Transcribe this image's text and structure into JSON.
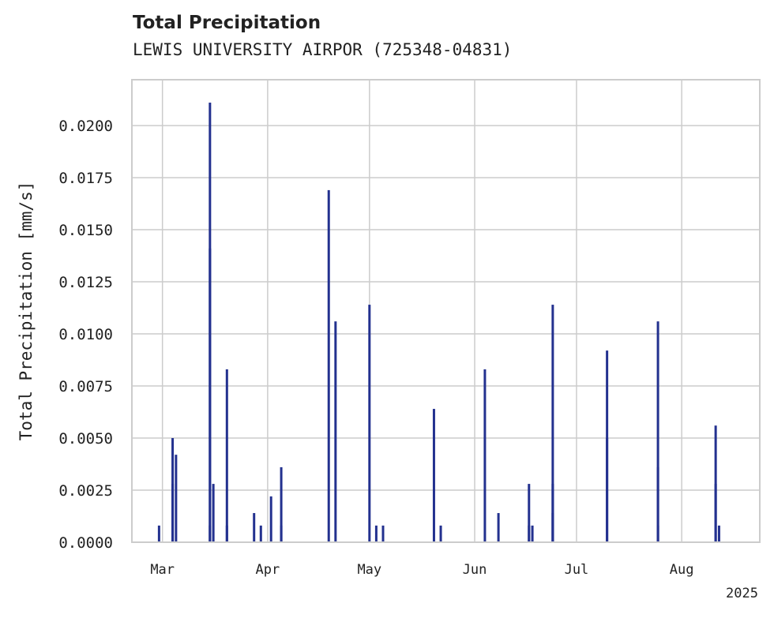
{
  "chart_data": {
    "type": "bar",
    "title": "Total Precipitation",
    "subtitle": "LEWIS UNIVERSITY AIRPOR (725348-04831)",
    "xlabel": "",
    "ylabel": "Total Precipitation [mm/s]",
    "ylim": [
      0,
      0.0222
    ],
    "xlim": [
      "2025-02-20",
      "2025-08-24"
    ],
    "grid": true,
    "y_ticks": [
      "0.0000",
      "0.0025",
      "0.0050",
      "0.0075",
      "0.0100",
      "0.0125",
      "0.0150",
      "0.0175",
      "0.0200"
    ],
    "x_ticks": [
      {
        "date": "2025-03-01",
        "label": "Mar"
      },
      {
        "date": "2025-04-01",
        "label": "Apr"
      },
      {
        "date": "2025-05-01",
        "label": "May"
      },
      {
        "date": "2025-06-01",
        "label": "Jun"
      },
      {
        "date": "2025-07-01",
        "label": "Jul"
      },
      {
        "date": "2025-08-01",
        "label": "Aug"
      }
    ],
    "x_offset_label": "2025",
    "series_color": "#23318f",
    "points": [
      {
        "date": "2025-02-28",
        "value": 0.0008
      },
      {
        "date": "2025-03-04",
        "value": 0.005
      },
      {
        "date": "2025-03-04",
        "value": 0.0028
      },
      {
        "date": "2025-03-05",
        "value": 0.0042
      },
      {
        "date": "2025-03-15",
        "value": 0.0211
      },
      {
        "date": "2025-03-15",
        "value": 0.0141
      },
      {
        "date": "2025-03-15",
        "value": 0.0008
      },
      {
        "date": "2025-03-16",
        "value": 0.0028
      },
      {
        "date": "2025-03-20",
        "value": 0.0083
      },
      {
        "date": "2025-03-20",
        "value": 0.0008
      },
      {
        "date": "2025-03-28",
        "value": 0.0014
      },
      {
        "date": "2025-03-30",
        "value": 0.0008
      },
      {
        "date": "2025-04-02",
        "value": 0.0022
      },
      {
        "date": "2025-04-05",
        "value": 0.0036
      },
      {
        "date": "2025-04-05",
        "value": 0.0008
      },
      {
        "date": "2025-04-19",
        "value": 0.0169
      },
      {
        "date": "2025-04-21",
        "value": 0.0106
      },
      {
        "date": "2025-05-01",
        "value": 0.0114
      },
      {
        "date": "2025-05-03",
        "value": 0.0008
      },
      {
        "date": "2025-05-05",
        "value": 0.0008
      },
      {
        "date": "2025-05-20",
        "value": 0.0064
      },
      {
        "date": "2025-05-22",
        "value": 0.0008
      },
      {
        "date": "2025-06-04",
        "value": 0.0083
      },
      {
        "date": "2025-06-08",
        "value": 0.0014
      },
      {
        "date": "2025-06-17",
        "value": 0.0028
      },
      {
        "date": "2025-06-17",
        "value": 0.0008
      },
      {
        "date": "2025-06-18",
        "value": 0.0008
      },
      {
        "date": "2025-06-24",
        "value": 0.0114
      },
      {
        "date": "2025-06-24",
        "value": 0.0028
      },
      {
        "date": "2025-06-24",
        "value": 0.0014
      },
      {
        "date": "2025-07-10",
        "value": 0.0092
      },
      {
        "date": "2025-07-10",
        "value": 0.005
      },
      {
        "date": "2025-07-25",
        "value": 0.0106
      },
      {
        "date": "2025-07-25",
        "value": 0.0036
      },
      {
        "date": "2025-07-25",
        "value": 0.0008
      },
      {
        "date": "2025-08-11",
        "value": 0.0056
      },
      {
        "date": "2025-08-11",
        "value": 0.0028
      },
      {
        "date": "2025-08-12",
        "value": 0.0008
      }
    ]
  }
}
